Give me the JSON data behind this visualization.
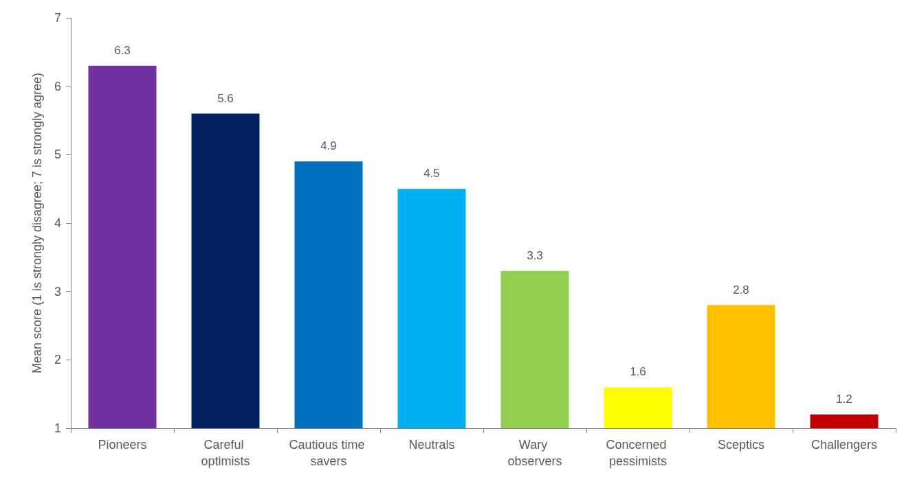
{
  "chart_data": {
    "type": "bar",
    "ylabel": "Mean score (1 is strongly disagree; 7 is strongly agree)",
    "categories": [
      "Pioneers",
      "Careful optimists",
      "Cautious time savers",
      "Neutrals",
      "Wary observers",
      "Concerned pessimists",
      "Sceptics",
      "Challengers"
    ],
    "values": [
      6.3,
      5.6,
      4.9,
      4.5,
      3.3,
      1.6,
      2.8,
      1.2
    ],
    "colors": [
      "#7030a0",
      "#002060",
      "#0070c0",
      "#00b0f0",
      "#92d050",
      "#ffff00",
      "#ffc000",
      "#c00000"
    ],
    "ylim": [
      1,
      7
    ],
    "yticks": [
      1,
      2,
      3,
      4,
      5,
      6,
      7
    ],
    "grid": false,
    "data_labels": true
  }
}
